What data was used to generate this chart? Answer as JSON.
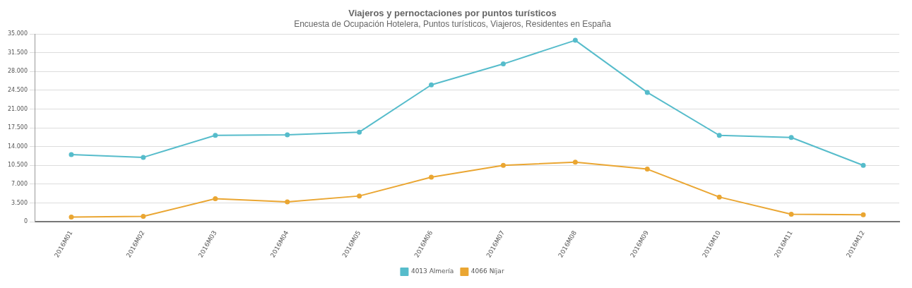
{
  "chart_data": {
    "type": "line",
    "title": "Viajeros y pernoctaciones por puntos turísticos",
    "subtitle": "Encuesta de Ocupación Hotelera, Puntos turísticos, Viajeros, Residentes en España",
    "categories": [
      "2016M01",
      "2016M02",
      "2016M03",
      "2016M04",
      "2016M05",
      "2016M06",
      "2016M07",
      "2016M08",
      "2016M09",
      "2016M10",
      "2016M11",
      "2016M12"
    ],
    "series": [
      {
        "name": "4013 Almería",
        "color": "#56bccb",
        "values": [
          12500,
          12000,
          16100,
          16200,
          16700,
          25500,
          29400,
          33800,
          24100,
          16100,
          15700,
          10500
        ]
      },
      {
        "name": "4066 Níjar",
        "color": "#eaa632",
        "values": [
          870,
          990,
          4300,
          3700,
          4800,
          8300,
          10500,
          11100,
          9800,
          4600,
          1400,
          1300
        ]
      }
    ],
    "ylim": [
      0,
      35000
    ],
    "yticks": [
      {
        "value": 0,
        "label": "0"
      },
      {
        "value": 3500,
        "label": "3.500"
      },
      {
        "value": 7000,
        "label": "7.000"
      },
      {
        "value": 10500,
        "label": "10.500"
      },
      {
        "value": 14000,
        "label": "14.000"
      },
      {
        "value": 17500,
        "label": "17.500"
      },
      {
        "value": 21000,
        "label": "21.000"
      },
      {
        "value": 24500,
        "label": "24.500"
      },
      {
        "value": 28000,
        "label": "28.000"
      },
      {
        "value": 31500,
        "label": "31.500"
      },
      {
        "value": 35000,
        "label": "35.000"
      }
    ],
    "grid": "y",
    "legend": "bottom",
    "marker": "circle",
    "line_style": "solid"
  }
}
